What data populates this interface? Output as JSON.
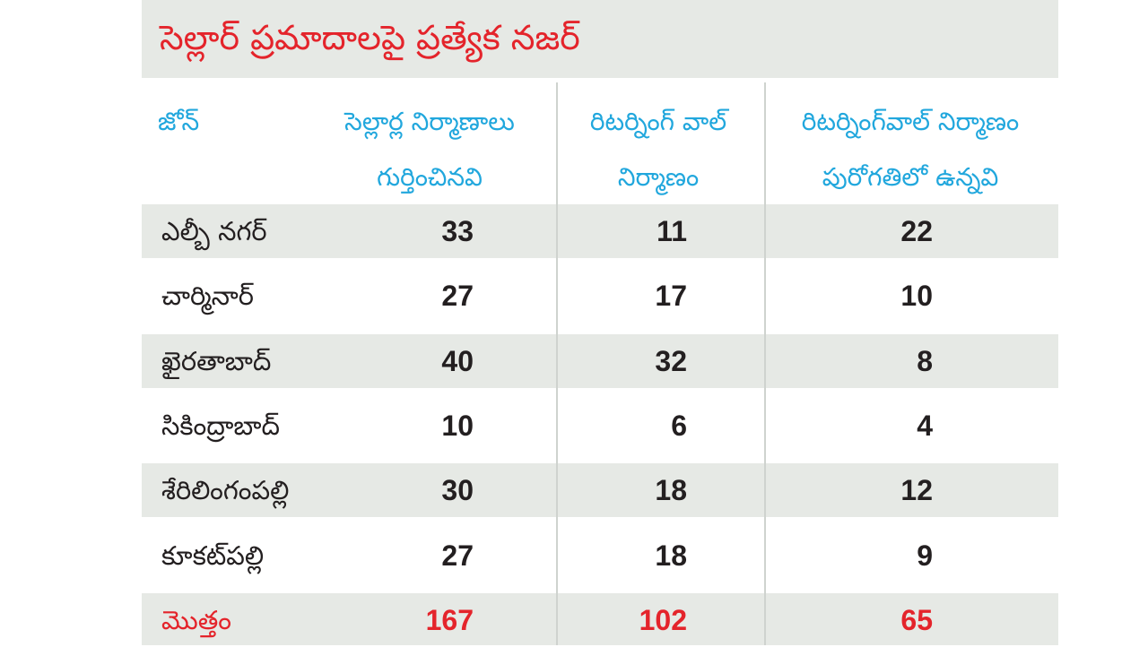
{
  "title": "సెల్లార్ ప్రమాదాలపై ప్రత్యేక నజర్",
  "headers": {
    "zone": "జోన్",
    "col1_line1": "సెల్లార్ల నిర్మాణాలు",
    "col1_line2": "గుర్తించినవి",
    "col2_line1": "రిటర్నింగ్ వాల్",
    "col2_line2": "నిర్మాణం",
    "col3_line1": "రిటర్నింగ్‌వాల్ నిర్మాణం",
    "col3_line2": "పురోగతిలో ఉన్నవి"
  },
  "rows": [
    {
      "zone": "ఎల్బీ నగర్",
      "col1": "33",
      "col2": "11",
      "col3": "22"
    },
    {
      "zone": "చార్మినార్",
      "col1": "27",
      "col2": "17",
      "col3": "10"
    },
    {
      "zone": "ఖైరతాబాద్",
      "col1": "40",
      "col2": "32",
      "col3": "8"
    },
    {
      "zone": "సికింద్రాబాద్",
      "col1": "10",
      "col2": "6",
      "col3": "4"
    },
    {
      "zone": "శేరిలింగంపల్లి",
      "col1": "30",
      "col2": "18",
      "col3": "12"
    },
    {
      "zone": "కూకట్‌పల్లి",
      "col1": "27",
      "col2": "18",
      "col3": "9"
    }
  ],
  "total": {
    "zone": "మొత్తం",
    "col1": "167",
    "col2": "102",
    "col3": "65"
  },
  "colors": {
    "title": "#e4242b",
    "header": "#21a7dd",
    "shade": "#e6e9e5",
    "total": "#e4242b"
  }
}
